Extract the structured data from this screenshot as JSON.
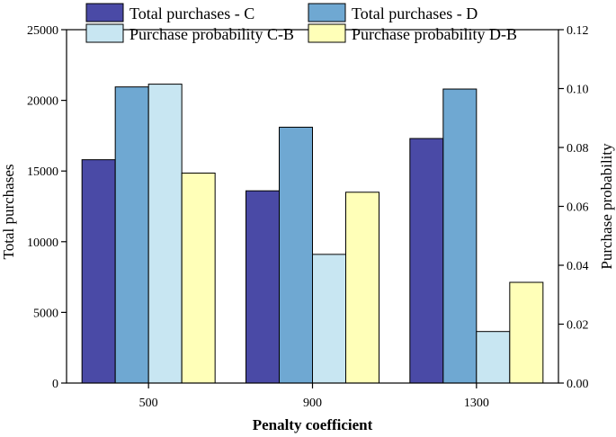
{
  "chart_data": {
    "type": "bar",
    "categories": [
      "500",
      "900",
      "1300"
    ],
    "xlabel": "Penalty coefficient",
    "ylabel_left": "Total purchases",
    "ylabel_right": "Purchase probability",
    "ylim_left": [
      0,
      25000
    ],
    "ylim_right": [
      0,
      0.12
    ],
    "yticks_left": [
      "0",
      "5000",
      "10000",
      "15000",
      "20000",
      "25000"
    ],
    "yticks_right": [
      "0.00",
      "0.02",
      "0.04",
      "0.06",
      "0.08",
      "0.10",
      "0.12"
    ],
    "series": [
      {
        "name": "Total purchases - C",
        "axis": "left",
        "values": [
          15800,
          13600,
          17300
        ],
        "color": "#4a4aa6"
      },
      {
        "name": "Total purchases - D",
        "axis": "left",
        "values": [
          20950,
          18100,
          20800
        ],
        "color": "#6fa8d2"
      },
      {
        "name": "Purchase probability C-B",
        "axis": "right",
        "values": [
          0.1015,
          0.0437,
          0.0175
        ],
        "color": "#c8e6f2"
      },
      {
        "name": "Purchase probability D-B",
        "axis": "right",
        "values": [
          0.0713,
          0.0648,
          0.0342
        ],
        "color": "#ffffb8"
      }
    ],
    "legend": "top"
  }
}
